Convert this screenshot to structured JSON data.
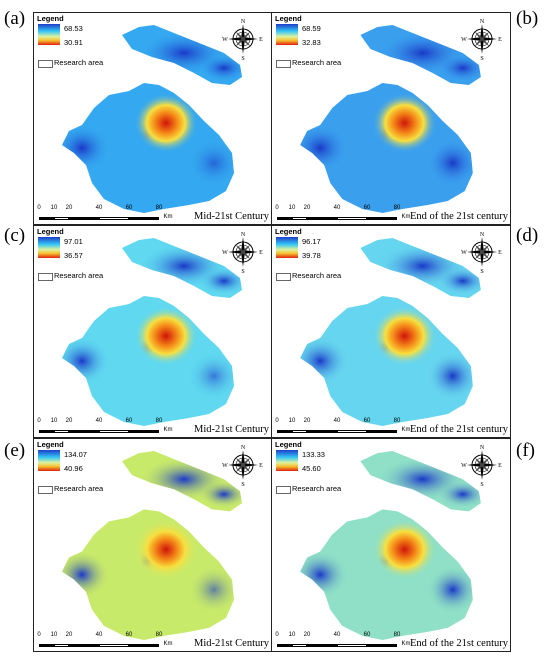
{
  "legend_title": "Legend",
  "research_area_label": "Research area",
  "compass_labels": {
    "n": "N",
    "s": "S",
    "e": "E",
    "w": "W"
  },
  "scale_bar": {
    "ticks": [
      "0",
      "10",
      "20",
      "40",
      "60",
      "80"
    ],
    "unit": "Km"
  },
  "colors": {
    "high": "#1c3ec9",
    "mid": "#34c8f5",
    "low_mid": "#ddf2a0",
    "low": "#e0210f"
  },
  "panels": [
    {
      "label": "(a)",
      "legend_max": "68.53",
      "legend_min": "30.91",
      "period": "Mid-21st Century"
    },
    {
      "label": "(b)",
      "legend_max": "68.59",
      "legend_min": "32.83",
      "period": "End of the 21st century"
    },
    {
      "label": "(c)",
      "legend_max": "97.01",
      "legend_min": "36.57",
      "period": "Mid-21st Century"
    },
    {
      "label": "(d)",
      "legend_max": "96.17",
      "legend_min": "39.78",
      "period": "End of the 21st century"
    },
    {
      "label": "(e)",
      "legend_max": "134.07",
      "legend_min": "40.96",
      "period": "Mid-21st Century"
    },
    {
      "label": "(f)",
      "legend_max": "133.33",
      "legend_min": "45.60",
      "period": "End of the 21st century"
    }
  ]
}
